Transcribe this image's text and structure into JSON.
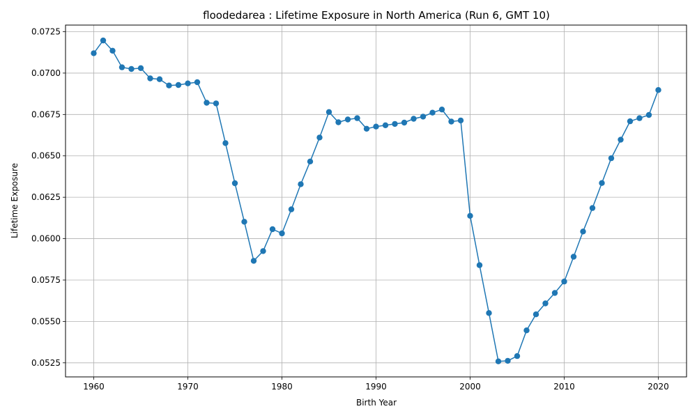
{
  "chart_data": {
    "type": "line",
    "title": "floodedarea : Lifetime Exposure in North America (Run 6, GMT 10)",
    "xlabel": "Birth Year",
    "ylabel": "Lifetime Exposure",
    "xlim": [
      1957,
      2023
    ],
    "ylim": [
      0.05165,
      0.0729
    ],
    "grid": true,
    "color": "#1f77b4",
    "xticks": [
      1960,
      1970,
      1980,
      1990,
      2000,
      2010,
      2020
    ],
    "xtick_labels": [
      "1960",
      "1970",
      "1980",
      "1990",
      "2000",
      "2010",
      "2020"
    ],
    "yticks": [
      0.0525,
      0.055,
      0.0575,
      0.06,
      0.0625,
      0.065,
      0.0675,
      0.07,
      0.0725
    ],
    "ytick_labels": [
      "0.0525",
      "0.0550",
      "0.0575",
      "0.0600",
      "0.0625",
      "0.0650",
      "0.0675",
      "0.0700",
      "0.0725"
    ],
    "series": [
      {
        "x": [
          1960,
          1961,
          1962,
          1963,
          1964,
          1965,
          1966,
          1967,
          1968,
          1969,
          1970,
          1971,
          1972,
          1973,
          1974,
          1975,
          1976,
          1977,
          1978,
          1979,
          1980,
          1981,
          1982,
          1983,
          1984,
          1985,
          1986,
          1987,
          1988,
          1989,
          1990,
          1991,
          1992,
          1993,
          1994,
          1995,
          1996,
          1997,
          1998,
          1999,
          2000,
          2001,
          2002,
          2003,
          2004,
          2005,
          2006,
          2007,
          2008,
          2009,
          2010,
          2011,
          2012,
          2013,
          2014,
          2015,
          2016,
          2017,
          2018,
          2019,
          2020
        ],
        "values": [
          0.0712,
          0.07197,
          0.07135,
          0.07035,
          0.07025,
          0.0703,
          0.06968,
          0.06963,
          0.06925,
          0.06928,
          0.06938,
          0.06945,
          0.06821,
          0.06817,
          0.06577,
          0.06335,
          0.06102,
          0.05866,
          0.05925,
          0.06057,
          0.06032,
          0.06177,
          0.06329,
          0.06466,
          0.06611,
          0.06765,
          0.06703,
          0.0672,
          0.06728,
          0.06664,
          0.06677,
          0.06685,
          0.06693,
          0.06701,
          0.06724,
          0.06737,
          0.06761,
          0.0678,
          0.06707,
          0.06714,
          0.06138,
          0.0584,
          0.05551,
          0.05259,
          0.05262,
          0.05291,
          0.05446,
          0.05543,
          0.05609,
          0.05672,
          0.05741,
          0.05891,
          0.06043,
          0.06185,
          0.06336,
          0.06486,
          0.06598,
          0.06709,
          0.06728,
          0.06747,
          0.06898
        ]
      }
    ]
  }
}
